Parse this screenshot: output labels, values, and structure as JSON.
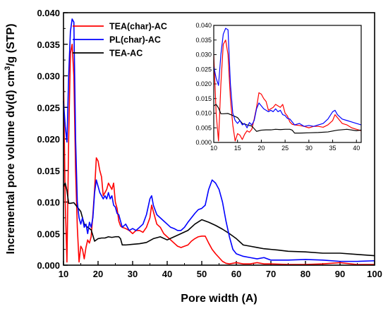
{
  "chart_data": {
    "type": "line",
    "xlabel": "Pore width (A)",
    "ylabel_parts": [
      "Incremental pore volume dv(d) cm",
      "3",
      "/g (STP)"
    ],
    "xlim": [
      10,
      100
    ],
    "ylim": [
      0,
      0.04
    ],
    "xticks": [
      "10",
      "20",
      "30",
      "40",
      "50",
      "60",
      "70",
      "80",
      "90",
      "100"
    ],
    "yticks": [
      "0.000",
      "0.005",
      "0.010",
      "0.015",
      "0.020",
      "0.025",
      "0.030",
      "0.035",
      "0.040"
    ],
    "legend": "top-left",
    "colors": {
      "TEA(char)-AC": "#ff0000",
      "PL(char)-AC": "#0000ff",
      "TEA-AC": "#000000"
    },
    "series": [
      {
        "name": "TEA(char)-AC",
        "color": "#ff0000",
        "x": [
          10,
          10.5,
          11,
          11.5,
          12,
          12.5,
          13,
          13.5,
          14,
          14.5,
          15,
          15.5,
          16,
          16.5,
          17,
          17.5,
          18,
          18.5,
          19,
          19.5,
          20,
          20.5,
          21,
          21.5,
          22,
          22.5,
          23,
          23.5,
          24,
          24.5,
          25,
          25.5,
          26,
          26.5,
          27,
          28,
          29,
          30,
          31,
          32,
          33,
          34,
          35,
          35.5,
          36,
          37,
          38,
          39,
          40,
          41,
          42,
          43,
          44,
          45,
          46,
          47,
          48,
          49,
          50,
          51,
          52,
          53,
          54,
          55,
          56,
          57,
          58,
          59,
          60,
          62,
          64,
          66,
          68,
          70,
          75,
          80,
          85,
          90,
          95,
          100
        ],
        "y": [
          0.03,
          0.01,
          0.0005,
          0.02,
          0.0335,
          0.035,
          0.03,
          0.015,
          0.006,
          0.0005,
          0.003,
          0.0025,
          0.001,
          0.0028,
          0.004,
          0.0035,
          0.0045,
          0.008,
          0.012,
          0.017,
          0.0165,
          0.015,
          0.014,
          0.011,
          0.0115,
          0.012,
          0.013,
          0.0125,
          0.012,
          0.013,
          0.01,
          0.009,
          0.007,
          0.0062,
          0.006,
          0.0058,
          0.0055,
          0.005,
          0.0055,
          0.0055,
          0.0052,
          0.006,
          0.0075,
          0.0095,
          0.0085,
          0.0065,
          0.006,
          0.005,
          0.0045,
          0.004,
          0.0035,
          0.003,
          0.0028,
          0.003,
          0.0032,
          0.0038,
          0.0042,
          0.0045,
          0.0046,
          0.0046,
          0.0035,
          0.0025,
          0.0018,
          0.0012,
          0.0006,
          0.0003,
          0.0002,
          0.0003,
          0.0004,
          0.0002,
          0.0002,
          0.0004,
          0.0002,
          0.0002,
          0.0001,
          0.0001,
          0.0002,
          0.0004,
          0.0001,
          0.0001
        ]
      },
      {
        "name": "PL(char)-AC",
        "color": "#0000ff",
        "x": [
          10,
          10.5,
          11,
          11.5,
          12,
          12.5,
          13,
          13.5,
          14,
          14.5,
          15,
          15.5,
          16,
          16.5,
          17,
          17.5,
          18,
          18.5,
          19,
          19.5,
          20,
          20.5,
          21,
          21.5,
          22,
          22.5,
          23,
          23.5,
          24,
          24.5,
          25,
          25.5,
          26,
          27,
          28,
          29,
          30,
          31,
          32,
          33,
          34,
          35,
          35.5,
          36,
          37,
          38,
          39,
          40,
          41,
          42,
          43,
          44,
          45,
          46,
          47,
          48,
          49,
          50,
          51,
          52,
          53,
          54,
          55,
          56,
          57,
          58,
          59,
          60,
          62,
          64,
          66,
          68,
          70,
          75,
          80,
          85,
          90,
          95,
          100
        ],
        "y": [
          0.026,
          0.022,
          0.0195,
          0.03,
          0.037,
          0.039,
          0.0385,
          0.02,
          0.01,
          0.0075,
          0.0065,
          0.0075,
          0.006,
          0.0065,
          0.005,
          0.0068,
          0.006,
          0.0075,
          0.0115,
          0.0135,
          0.0125,
          0.0115,
          0.011,
          0.0105,
          0.011,
          0.0105,
          0.0115,
          0.0105,
          0.011,
          0.0095,
          0.0092,
          0.0082,
          0.008,
          0.006,
          0.0065,
          0.0055,
          0.0058,
          0.0055,
          0.006,
          0.0065,
          0.008,
          0.0105,
          0.011,
          0.0095,
          0.008,
          0.0075,
          0.007,
          0.0065,
          0.006,
          0.0058,
          0.0055,
          0.0055,
          0.006,
          0.0068,
          0.0075,
          0.0082,
          0.0088,
          0.009,
          0.0095,
          0.012,
          0.0135,
          0.013,
          0.012,
          0.01,
          0.007,
          0.0045,
          0.0025,
          0.0018,
          0.0014,
          0.0012,
          0.001,
          0.0012,
          0.0008,
          0.0008,
          0.0009,
          0.0008,
          0.0006,
          0.0006,
          0.0007
        ]
      },
      {
        "name": "TEA-AC",
        "color": "#000000",
        "x": [
          10,
          10.5,
          11,
          11.5,
          12,
          13,
          14,
          15,
          16,
          17,
          18,
          19,
          20,
          21,
          22,
          23,
          24,
          25,
          26,
          26.5,
          27,
          28,
          30,
          32,
          34,
          36,
          38,
          40,
          42,
          44,
          46,
          48,
          50,
          52,
          54,
          56,
          58,
          60,
          62,
          64,
          66,
          68,
          70,
          72,
          75,
          80,
          85,
          90,
          95,
          100
        ],
        "y": [
          0.0125,
          0.013,
          0.0118,
          0.0098,
          0.0098,
          0.0099,
          0.0092,
          0.0085,
          0.0065,
          0.006,
          0.0056,
          0.0038,
          0.0042,
          0.0043,
          0.0043,
          0.0045,
          0.0044,
          0.0045,
          0.0045,
          0.0042,
          0.0032,
          0.0032,
          0.0033,
          0.0034,
          0.0036,
          0.0042,
          0.0045,
          0.004,
          0.0045,
          0.005,
          0.0055,
          0.0065,
          0.0072,
          0.0068,
          0.0063,
          0.0057,
          0.005,
          0.0042,
          0.0032,
          0.003,
          0.0028,
          0.0026,
          0.0025,
          0.0024,
          0.0022,
          0.0021,
          0.0019,
          0.0019,
          0.0017,
          0.0015
        ]
      }
    ],
    "inset": {
      "xlim": [
        10,
        41
      ],
      "ylim": [
        0,
        0.04
      ],
      "xticks": [
        "10",
        "15",
        "20",
        "25",
        "30",
        "35",
        "40"
      ],
      "yticks": [
        "0.000",
        "0.005",
        "0.010",
        "0.015",
        "0.020",
        "0.025",
        "0.030",
        "0.035",
        "0.040"
      ]
    }
  }
}
